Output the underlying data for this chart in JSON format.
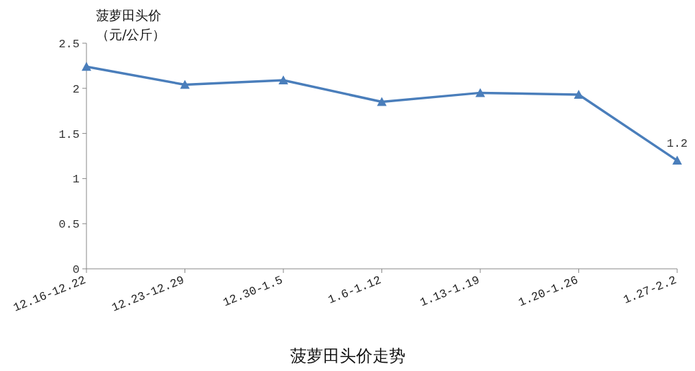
{
  "chart_data": {
    "type": "line",
    "title": "菠萝田头价走势",
    "ylabel": "菠萝田头价（元/公斤）",
    "categories": [
      "12.16-12.22",
      "12.23-12.29",
      "12.30-1.5",
      "1.6-1.12",
      "1.13-1.19",
      "1.20-1.26",
      "1.27-2.2"
    ],
    "series": [
      {
        "color": "#4a7ebb",
        "values": [
          2.24,
          2.04,
          2.09,
          1.85,
          1.95,
          1.93,
          1.2
        ],
        "value_labels": [
          null,
          null,
          null,
          null,
          null,
          null,
          "1.2"
        ]
      }
    ],
    "ylim": [
      0,
      2.5
    ],
    "yticks": [
      0,
      0.5,
      1,
      1.5,
      2,
      2.5
    ],
    "marker": "triangle",
    "line_style": "solid",
    "grid": false
  }
}
